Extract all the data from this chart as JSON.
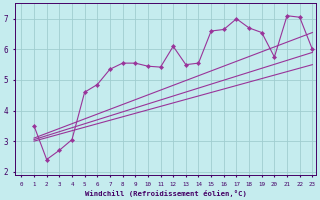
{
  "xlabel": "Windchill (Refroidissement éolien,°C)",
  "bg_color": "#c5ecee",
  "grid_color": "#a0cdd0",
  "line_color": "#993399",
  "xlim": [
    -0.5,
    23.3
  ],
  "ylim": [
    1.9,
    7.5
  ],
  "xticks": [
    0,
    1,
    2,
    3,
    4,
    5,
    6,
    7,
    8,
    9,
    10,
    11,
    12,
    13,
    14,
    15,
    16,
    17,
    18,
    19,
    20,
    21,
    22,
    23
  ],
  "yticks": [
    2,
    3,
    4,
    5,
    6,
    7
  ],
  "jagged_curve": {
    "x": [
      1,
      2,
      3,
      4,
      5,
      6,
      7,
      8,
      9,
      10,
      11,
      12,
      13,
      14,
      15,
      16,
      17,
      18,
      19,
      20,
      21,
      22,
      23
    ],
    "y": [
      3.5,
      2.4,
      2.7,
      3.05,
      4.6,
      4.85,
      5.35,
      5.55,
      5.55,
      5.45,
      5.42,
      6.1,
      5.5,
      5.55,
      6.6,
      6.65,
      7.0,
      6.7,
      6.55,
      5.75,
      7.1,
      7.05,
      6.0
    ]
  },
  "straight_curves": [
    {
      "x": [
        1,
        23
      ],
      "y": [
        3.1,
        6.55
      ]
    },
    {
      "x": [
        1,
        23
      ],
      "y": [
        3.05,
        5.9
      ]
    },
    {
      "x": [
        1,
        23
      ],
      "y": [
        3.0,
        5.5
      ]
    }
  ]
}
